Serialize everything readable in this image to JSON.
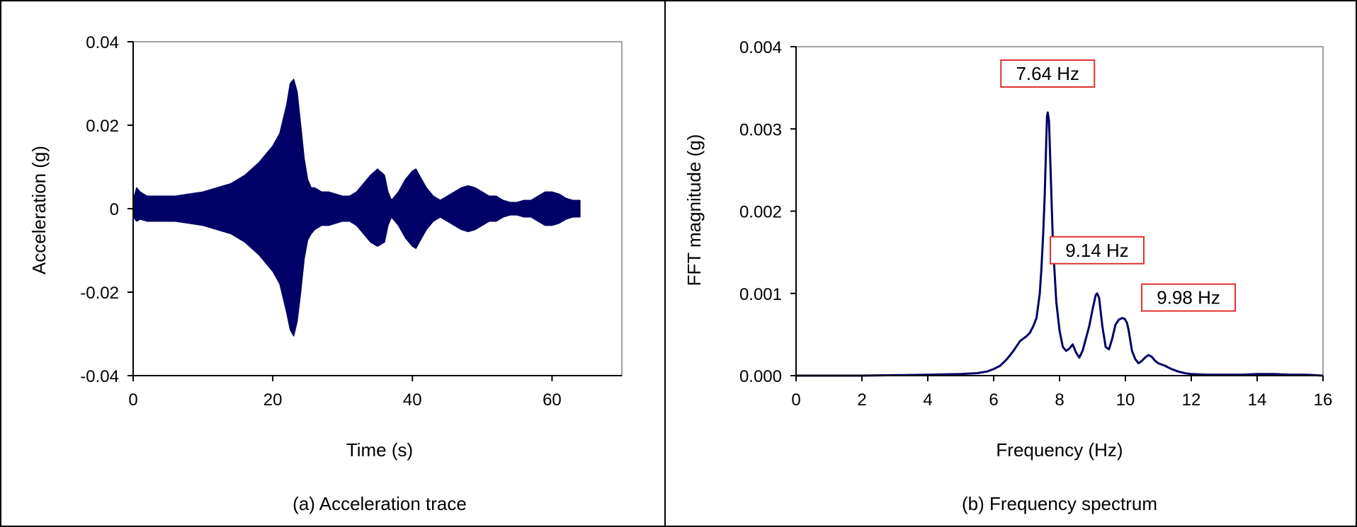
{
  "chart_data": [
    {
      "type": "line",
      "caption": "(a) Acceleration trace",
      "xlabel": "Time (s)",
      "ylabel": "Acceleration (g)",
      "xlim": [
        0,
        70
      ],
      "ylim": [
        -0.04,
        0.04
      ],
      "x_ticks": [
        0,
        20,
        40,
        60
      ],
      "x_tick_labels": [
        "0",
        "20",
        "40",
        "60"
      ],
      "y_ticks": [
        0.04,
        0.02,
        0,
        -0.02,
        -0.04
      ],
      "y_tick_labels": [
        "0.04",
        "0.02",
        "0",
        "-0.02",
        "-0.04"
      ],
      "grid": false,
      "line_color": "#000066",
      "series": [
        {
          "style": "envelope",
          "x": [
            0,
            0.5,
            1,
            2,
            4,
            6,
            8,
            10,
            12,
            14,
            16,
            18,
            20,
            21,
            22,
            22.5,
            23,
            23.5,
            24,
            24.5,
            25,
            25.5,
            26,
            27,
            28,
            29,
            30,
            31,
            32,
            33,
            34,
            35,
            36,
            36.5,
            37,
            38,
            39,
            40,
            40.5,
            41,
            42,
            43,
            44,
            45,
            46,
            47,
            48,
            49,
            50,
            51,
            52,
            53,
            54,
            55,
            56,
            57,
            58,
            59,
            60,
            61,
            62,
            63,
            64
          ],
          "upper": [
            0.002,
            0.005,
            0.004,
            0.003,
            0.003,
            0.003,
            0.0035,
            0.004,
            0.005,
            0.006,
            0.008,
            0.011,
            0.015,
            0.018,
            0.025,
            0.03,
            0.031,
            0.028,
            0.02,
            0.012,
            0.007,
            0.005,
            0.005,
            0.004,
            0.004,
            0.0035,
            0.003,
            0.003,
            0.004,
            0.006,
            0.008,
            0.0095,
            0.008,
            0.004,
            0.002,
            0.004,
            0.007,
            0.009,
            0.0095,
            0.008,
            0.005,
            0.003,
            0.002,
            0.003,
            0.004,
            0.005,
            0.0055,
            0.005,
            0.004,
            0.003,
            0.003,
            0.002,
            0.0015,
            0.0015,
            0.002,
            0.002,
            0.003,
            0.004,
            0.004,
            0.0035,
            0.0025,
            0.002,
            0.002
          ],
          "lower": [
            -0.002,
            -0.003,
            -0.0025,
            -0.003,
            -0.003,
            -0.003,
            -0.0035,
            -0.004,
            -0.005,
            -0.006,
            -0.008,
            -0.011,
            -0.015,
            -0.018,
            -0.025,
            -0.029,
            -0.0305,
            -0.027,
            -0.02,
            -0.012,
            -0.0075,
            -0.006,
            -0.005,
            -0.004,
            -0.004,
            -0.0035,
            -0.003,
            -0.003,
            -0.004,
            -0.006,
            -0.008,
            -0.009,
            -0.008,
            -0.004,
            -0.002,
            -0.004,
            -0.007,
            -0.009,
            -0.0095,
            -0.008,
            -0.005,
            -0.003,
            -0.002,
            -0.003,
            -0.004,
            -0.005,
            -0.0055,
            -0.005,
            -0.004,
            -0.003,
            -0.003,
            -0.002,
            -0.0015,
            -0.0015,
            -0.002,
            -0.002,
            -0.003,
            -0.004,
            -0.004,
            -0.0035,
            -0.0025,
            -0.002,
            -0.002
          ]
        }
      ]
    },
    {
      "type": "line",
      "caption": "(b) Frequency spectrum",
      "xlabel": "Frequency (Hz)",
      "ylabel": "FFT magnitude (g)",
      "xlim": [
        0,
        16
      ],
      "ylim": [
        0,
        0.004
      ],
      "x_ticks": [
        0,
        2,
        4,
        6,
        8,
        10,
        12,
        14,
        16
      ],
      "x_tick_labels": [
        "0",
        "2",
        "4",
        "6",
        "8",
        "10",
        "12",
        "14",
        "16"
      ],
      "y_ticks": [
        0.004,
        0.003,
        0.002,
        0.001,
        0
      ],
      "y_tick_labels": [
        "0.004",
        "0.003",
        "0.002",
        "0.001",
        "0.000"
      ],
      "grid": false,
      "line_color": "#000066",
      "series": [
        {
          "x": [
            0,
            2,
            4,
            5,
            5.5,
            5.8,
            6,
            6.2,
            6.4,
            6.6,
            6.8,
            7,
            7.1,
            7.2,
            7.3,
            7.4,
            7.45,
            7.5,
            7.55,
            7.6,
            7.62,
            7.64,
            7.68,
            7.72,
            7.8,
            7.9,
            8,
            8.1,
            8.2,
            8.3,
            8.4,
            8.5,
            8.6,
            8.7,
            8.8,
            8.9,
            9,
            9.1,
            9.14,
            9.2,
            9.3,
            9.4,
            9.5,
            9.6,
            9.7,
            9.8,
            9.9,
            9.98,
            10.05,
            10.1,
            10.2,
            10.3,
            10.4,
            10.5,
            10.6,
            10.7,
            10.8,
            10.9,
            11,
            11.2,
            11.4,
            11.6,
            11.8,
            12,
            12.5,
            13,
            13.5,
            14,
            14.5,
            15,
            15.5,
            16
          ],
          "y": [
            0,
            0,
            1e-05,
            2e-05,
            3e-05,
            5e-05,
            8e-05,
            0.00012,
            0.0002,
            0.0003,
            0.00042,
            0.00048,
            0.00052,
            0.0006,
            0.0007,
            0.001,
            0.0013,
            0.0017,
            0.0022,
            0.0029,
            0.00315,
            0.0032,
            0.0031,
            0.0026,
            0.0016,
            0.0009,
            0.00055,
            0.00035,
            0.0003,
            0.00033,
            0.00038,
            0.00028,
            0.00022,
            0.0003,
            0.00045,
            0.0006,
            0.0008,
            0.00098,
            0.001,
            0.00095,
            0.0006,
            0.00035,
            0.00032,
            0.00045,
            0.00062,
            0.00068,
            0.0007,
            0.00069,
            0.00064,
            0.00055,
            0.0003,
            0.0002,
            0.00015,
            0.00018,
            0.00022,
            0.00025,
            0.00023,
            0.00018,
            0.00015,
            0.00012,
            8e-05,
            5e-05,
            3e-05,
            2e-05,
            1e-05,
            1e-05,
            1e-05,
            2e-05,
            2e-05,
            1e-05,
            1e-05,
            0
          ]
        }
      ],
      "annotations": [
        {
          "text": "7.64 Hz",
          "x": 7.64,
          "y": 0.0032
        },
        {
          "text": "9.14 Hz",
          "x": 9.14,
          "y": 0.001
        },
        {
          "text": "9.98 Hz",
          "x": 9.98,
          "y": 0.0007
        }
      ]
    }
  ]
}
